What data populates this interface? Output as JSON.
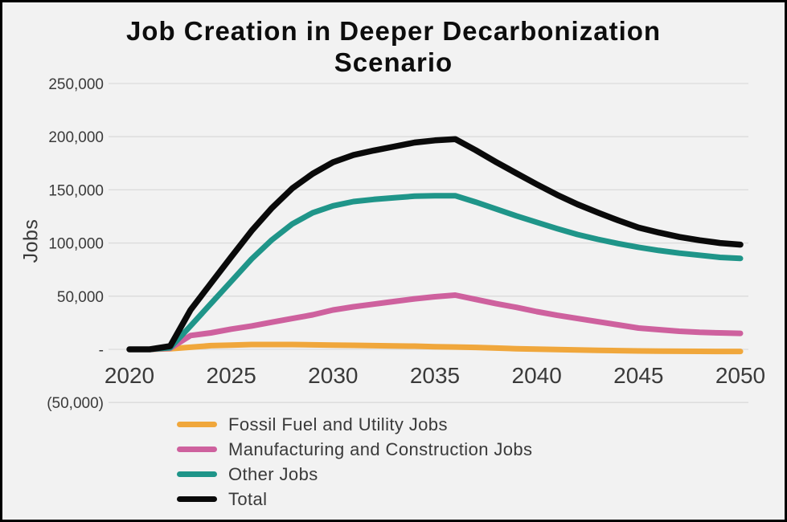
{
  "page": {
    "background_color": "#F2F2F2",
    "border_color": "#000000",
    "gridline_color": "#DBDBDB",
    "axis_text_color": "#3A3A3A"
  },
  "chart_data": {
    "type": "line",
    "title": "Job Creation in Deeper Decarbonization Scenario",
    "title_lines": [
      "Job Creation in Deeper Decarbonization",
      "Scenario"
    ],
    "xlabel": "",
    "ylabel": "Jobs",
    "ylim": [
      -50000,
      250000
    ],
    "grid": true,
    "legend_position": "bottom-left",
    "x": [
      2020,
      2021,
      2022,
      2023,
      2024,
      2025,
      2026,
      2027,
      2028,
      2029,
      2030,
      2031,
      2032,
      2033,
      2034,
      2035,
      2036,
      2037,
      2038,
      2039,
      2040,
      2041,
      2042,
      2043,
      2044,
      2045,
      2046,
      2047,
      2048,
      2049,
      2050
    ],
    "x_tick_labels": [
      "2020",
      "2025",
      "2030",
      "2035",
      "2040",
      "2045",
      "2050"
    ],
    "y_ticks": [
      {
        "value": 250000,
        "label": "250,000"
      },
      {
        "value": 200000,
        "label": "200,000"
      },
      {
        "value": 150000,
        "label": "150,000"
      },
      {
        "value": 100000,
        "label": "100,000"
      },
      {
        "value": 50000,
        "label": "50,000"
      },
      {
        "value": 0,
        "label": "-"
      },
      {
        "value": -50000,
        "label": "(50,000)"
      }
    ],
    "series": [
      {
        "name": "Fossil Fuel and Utility Jobs",
        "color": "#F0A73C",
        "values": [
          0,
          0,
          500,
          2000,
          3500,
          4000,
          4500,
          4500,
          4500,
          4200,
          4000,
          3800,
          3500,
          3200,
          3000,
          2500,
          2200,
          1800,
          1200,
          600,
          200,
          -200,
          -600,
          -900,
          -1200,
          -1500,
          -1700,
          -1800,
          -1900,
          -2000,
          -2000
        ]
      },
      {
        "name": "Manufacturing and Construction Jobs",
        "color": "#CE619E",
        "values": [
          0,
          0,
          1000,
          13000,
          15500,
          19000,
          22000,
          25500,
          29000,
          32500,
          37000,
          40000,
          42500,
          45000,
          47500,
          49500,
          51000,
          47000,
          43000,
          39500,
          35500,
          32000,
          29000,
          26000,
          23000,
          20000,
          18500,
          17000,
          16000,
          15500,
          15000
        ]
      },
      {
        "name": "Other Jobs",
        "color": "#1F9589",
        "values": [
          0,
          0,
          1500,
          22000,
          43000,
          64000,
          85000,
          103000,
          118000,
          128500,
          135000,
          139000,
          141000,
          142500,
          144000,
          144500,
          144500,
          138500,
          132000,
          125500,
          119500,
          113500,
          108000,
          103500,
          99500,
          96000,
          93000,
          90500,
          88500,
          86500,
          85500
        ]
      },
      {
        "name": "Total",
        "color": "#0A0A0A",
        "values": [
          0,
          0,
          3000,
          37000,
          62000,
          87000,
          111500,
          133000,
          151500,
          165200,
          176000,
          182800,
          187000,
          190700,
          194500,
          196500,
          197700,
          187300,
          176200,
          165600,
          155200,
          145300,
          136400,
          128600,
          121300,
          114500,
          109800,
          105700,
          102600,
          100000,
          98500
        ]
      }
    ]
  }
}
